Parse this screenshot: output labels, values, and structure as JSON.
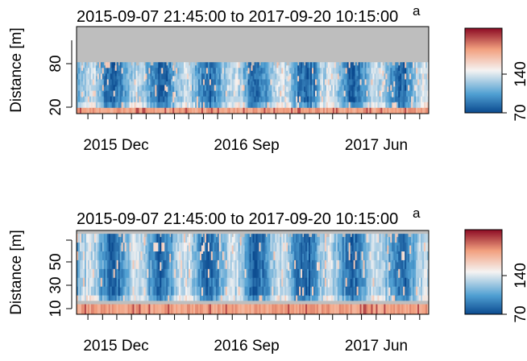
{
  "palette": {
    "low": "#0b4a8f",
    "mid_low": "#4f9fd2",
    "mid": "#f5f3f2",
    "mid_high": "#f2a07f",
    "high": "#8c0b24",
    "mask": "#bebebe"
  },
  "chart_data": [
    {
      "type": "heatmap",
      "title": "2015-09-07 21:45:00 to 2017-09-20 10:15:00",
      "corner_label": "a",
      "xlabel": "",
      "ylabel": "Distance [m]",
      "xlim": [
        "2015-09-07",
        "2017-09-20"
      ],
      "x_ticks": [
        "2015 Dec",
        "2016 Sep",
        "2017 Jun"
      ],
      "x_tick_dates": [
        "2015-12-01",
        "2016-09-01",
        "2017-06-01"
      ],
      "ylim": [
        10,
        115
      ],
      "y_ticks": [
        20,
        80
      ],
      "colorbar": {
        "range": [
          70,
          165
        ],
        "ticks": [
          70,
          140
        ]
      },
      "mask_above_distance": 72,
      "bottom_band_distance": [
        10,
        17
      ]
    },
    {
      "type": "heatmap",
      "title": "2015-09-07 21:45:00 to 2017-09-20 10:15:00",
      "corner_label": "a",
      "xlabel": "",
      "ylabel": "Distance [m]",
      "xlim": [
        "2015-09-07",
        "2017-09-20"
      ],
      "x_ticks": [
        "2015 Dec",
        "2016 Sep",
        "2017 Jun"
      ],
      "x_tick_dates": [
        "2015-12-01",
        "2016-09-01",
        "2017-06-01"
      ],
      "ylim": [
        5,
        80
      ],
      "y_ticks": [
        10,
        30,
        50
      ],
      "colorbar": {
        "range": [
          70,
          165
        ],
        "ticks": [
          70,
          140
        ]
      },
      "mask_above_distance": 77,
      "mask_band_distance": [
        14,
        17
      ],
      "bottom_band_distance": [
        5,
        14
      ]
    }
  ]
}
